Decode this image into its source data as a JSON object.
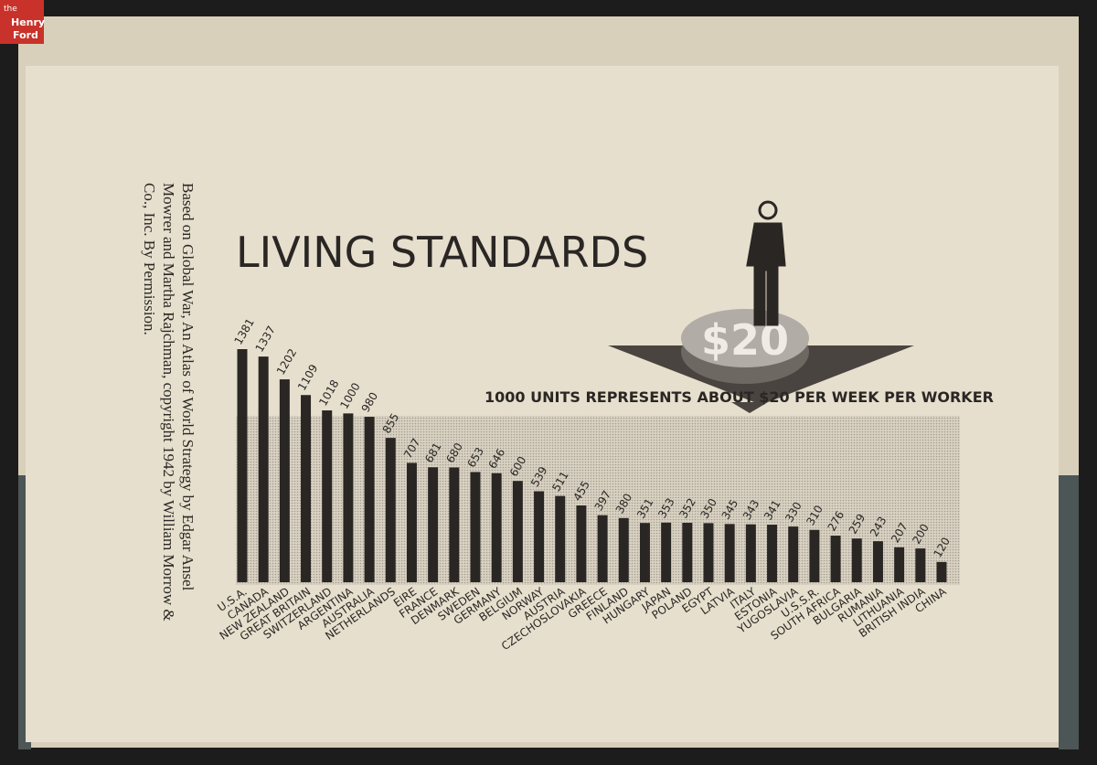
{
  "logo": {
    "line1": "the",
    "line2": "Henry",
    "line3": "Ford"
  },
  "note": {
    "lines": [
      "Based on Global War, An Atlas of World Strategy by Edgar Ansel",
      "Mowrer and Martha Rajchman, copyright 1942 by William Morrow &",
      "Co., Inc. By Permission."
    ]
  },
  "chart_data": {
    "type": "bar",
    "title": "LIVING STANDARDS",
    "subtitle": "1000 UNITS REPRESENTS ABOUT $20 PER WEEK PER WORKER",
    "badge": "$20",
    "color": "#2a2624",
    "categories": [
      "U.S.A.",
      "CANADA",
      "NEW ZEALAND",
      "GREAT BRITAIN",
      "SWITZERLAND",
      "ARGENTINA",
      "AUSTRALIA",
      "NETHERLANDS",
      "EIRE",
      "FRANCE",
      "DENMARK",
      "SWEDEN",
      "GERMANY",
      "BELGIUM",
      "NORWAY",
      "AUSTRIA",
      "CZECHOSLOVAKIA",
      "GREECE",
      "FINLAND",
      "HUNGARY",
      "JAPAN",
      "POLAND",
      "EGYPT",
      "LATVIA",
      "ITALY",
      "ESTONIA",
      "YUGOSLAVIA",
      "U.S.S.R.",
      "SOUTH AFRICA",
      "BULGARIA",
      "RUMANIA",
      "LITHUANIA",
      "BRITISH INDIA",
      "CHINA"
    ],
    "values": [
      1381,
      1337,
      1202,
      1109,
      1018,
      1000,
      980,
      855,
      707,
      681,
      680,
      653,
      646,
      600,
      539,
      511,
      455,
      397,
      380,
      351,
      353,
      352,
      350,
      345,
      343,
      341,
      330,
      310,
      276,
      259,
      243,
      207,
      200,
      120
    ]
  }
}
